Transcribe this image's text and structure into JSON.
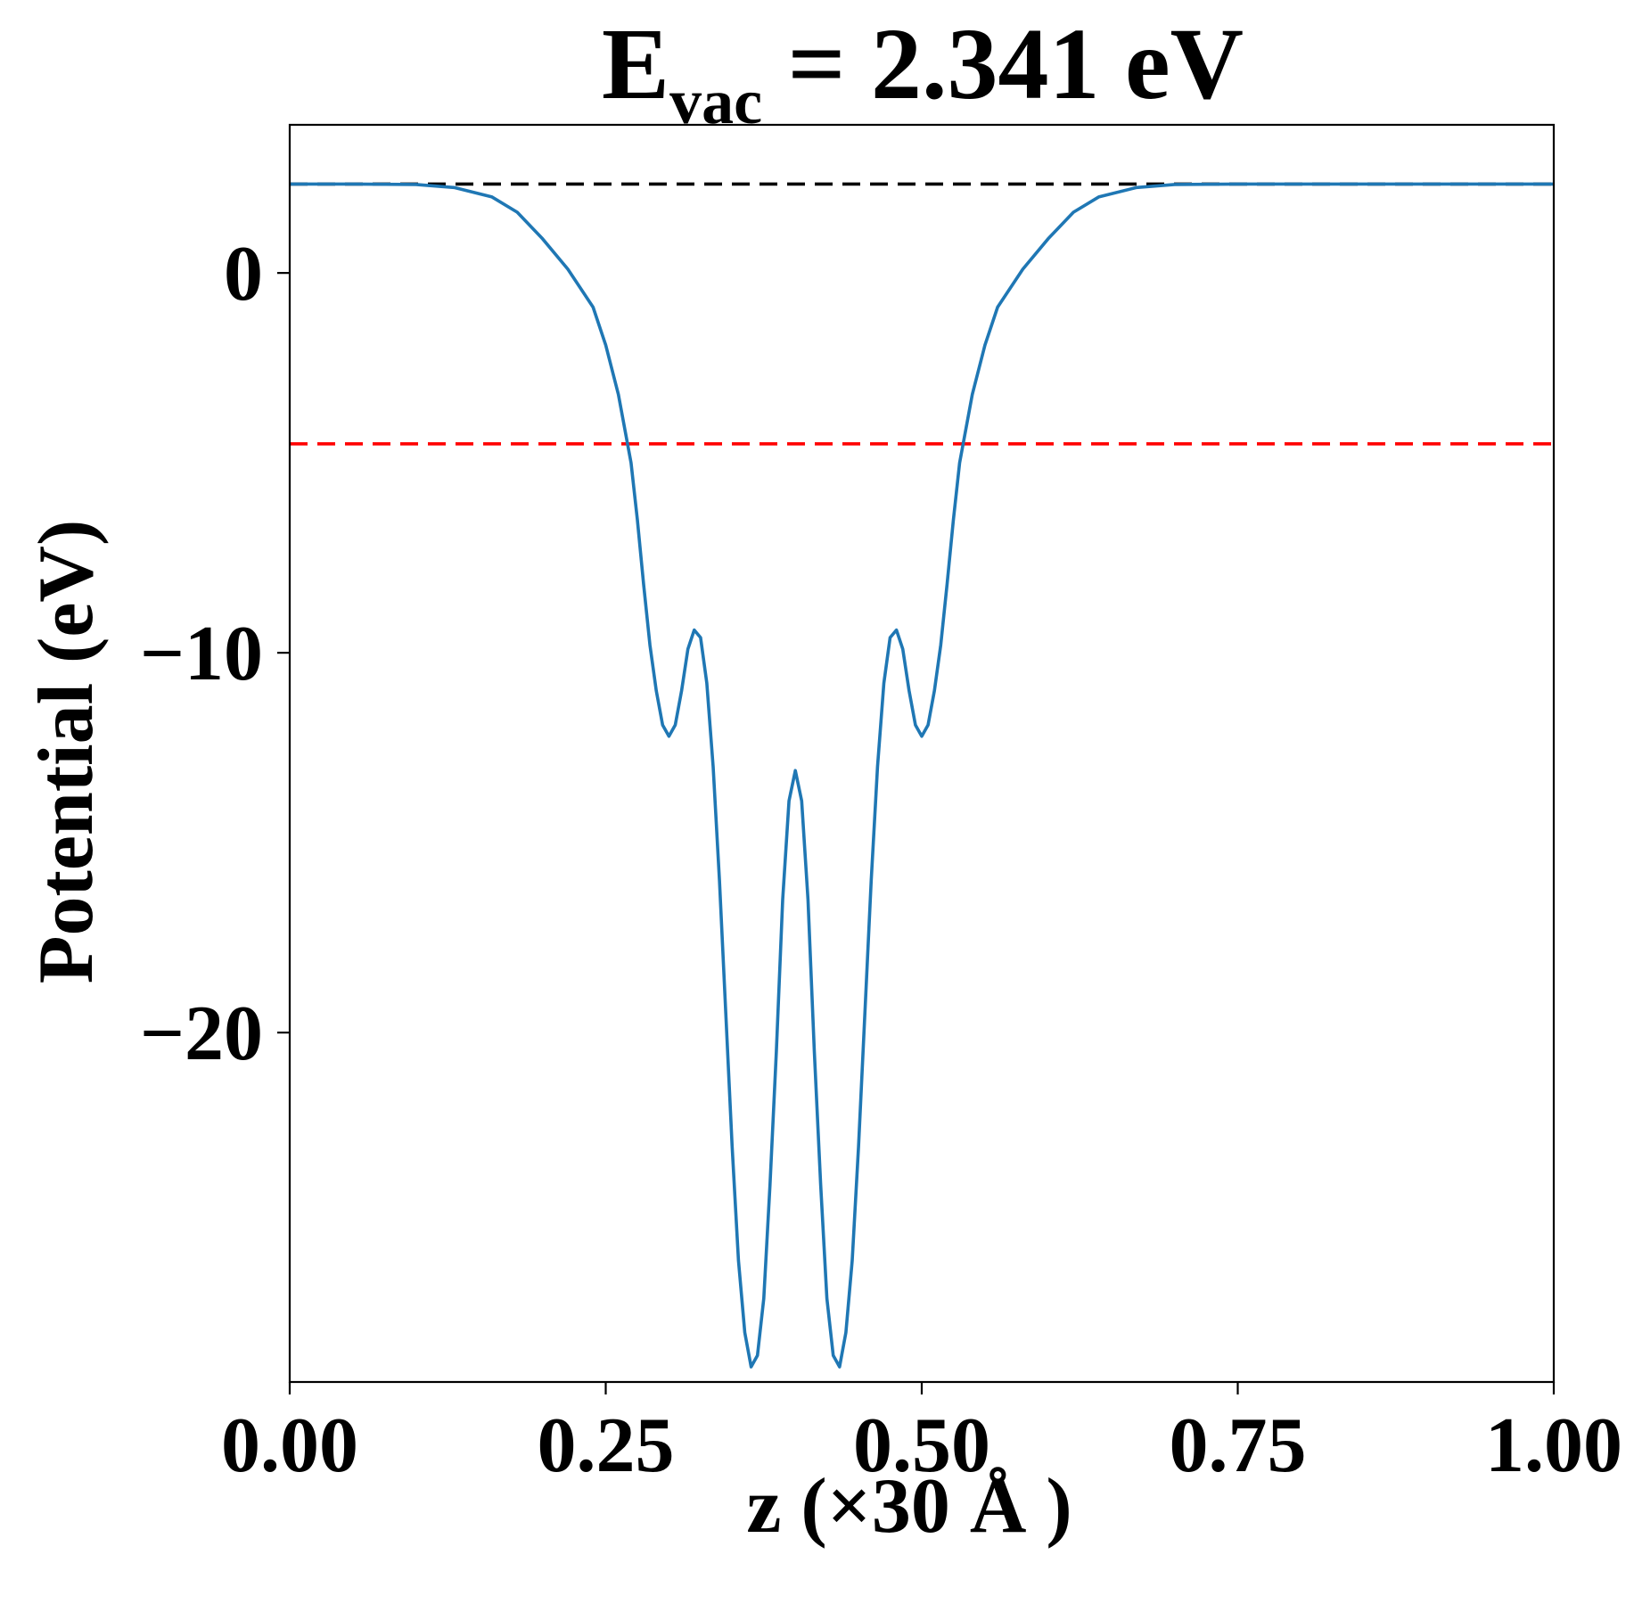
{
  "chart_data": {
    "type": "line",
    "title_main": "E",
    "title_sub": "vac",
    "title_rest": " = 2.341 eV",
    "xlabel": "z (×30 Å )",
    "ylabel": "Potential (eV)",
    "xlim": [
      0,
      1
    ],
    "ylim": [
      -29.2,
      3.9
    ],
    "grid": false,
    "legend": "none",
    "x_ticks": [
      {
        "value": 0.0,
        "label": "0.00"
      },
      {
        "value": 0.25,
        "label": "0.25"
      },
      {
        "value": 0.5,
        "label": "0.50"
      },
      {
        "value": 0.75,
        "label": "0.75"
      },
      {
        "value": 1.0,
        "label": "1.00"
      }
    ],
    "y_ticks": [
      {
        "value": 0,
        "label": "0"
      },
      {
        "value": -10,
        "label": "−10"
      },
      {
        "value": -20,
        "label": "−20"
      }
    ],
    "reference_lines": [
      {
        "kind": "vacuum-level",
        "y": 2.341,
        "color": "#000000",
        "style": "dashed"
      },
      {
        "kind": "fermi-level",
        "y": -4.5,
        "color": "#ff0000",
        "style": "dashed"
      }
    ],
    "series": [
      {
        "color": "#1f77b4",
        "points": [
          [
            0.0,
            2.341
          ],
          [
            0.05,
            2.341
          ],
          [
            0.1,
            2.33
          ],
          [
            0.13,
            2.25
          ],
          [
            0.16,
            2.0
          ],
          [
            0.18,
            1.6
          ],
          [
            0.2,
            0.9
          ],
          [
            0.22,
            0.1
          ],
          [
            0.24,
            -0.9
          ],
          [
            0.25,
            -1.9
          ],
          [
            0.26,
            -3.2
          ],
          [
            0.27,
            -5.0
          ],
          [
            0.275,
            -6.5
          ],
          [
            0.28,
            -8.2
          ],
          [
            0.285,
            -9.8
          ],
          [
            0.29,
            -11.0
          ],
          [
            0.295,
            -11.9
          ],
          [
            0.3,
            -12.2
          ],
          [
            0.305,
            -11.9
          ],
          [
            0.31,
            -11.0
          ],
          [
            0.315,
            -9.9
          ],
          [
            0.32,
            -9.4
          ],
          [
            0.325,
            -9.6
          ],
          [
            0.33,
            -10.8
          ],
          [
            0.335,
            -13.0
          ],
          [
            0.34,
            -16.0
          ],
          [
            0.345,
            -19.5
          ],
          [
            0.35,
            -23.0
          ],
          [
            0.355,
            -26.0
          ],
          [
            0.36,
            -27.9
          ],
          [
            0.365,
            -28.8
          ],
          [
            0.37,
            -28.5
          ],
          [
            0.375,
            -27.0
          ],
          [
            0.38,
            -24.0
          ],
          [
            0.385,
            -20.5
          ],
          [
            0.39,
            -16.5
          ],
          [
            0.395,
            -13.9
          ],
          [
            0.4,
            -13.1
          ],
          [
            0.405,
            -13.9
          ],
          [
            0.41,
            -16.5
          ],
          [
            0.415,
            -20.5
          ],
          [
            0.42,
            -24.0
          ],
          [
            0.425,
            -27.0
          ],
          [
            0.43,
            -28.5
          ],
          [
            0.435,
            -28.8
          ],
          [
            0.44,
            -27.9
          ],
          [
            0.445,
            -26.0
          ],
          [
            0.45,
            -23.0
          ],
          [
            0.455,
            -19.5
          ],
          [
            0.46,
            -16.0
          ],
          [
            0.465,
            -13.0
          ],
          [
            0.47,
            -10.8
          ],
          [
            0.475,
            -9.6
          ],
          [
            0.48,
            -9.4
          ],
          [
            0.485,
            -9.9
          ],
          [
            0.49,
            -11.0
          ],
          [
            0.495,
            -11.9
          ],
          [
            0.5,
            -12.2
          ],
          [
            0.505,
            -11.9
          ],
          [
            0.51,
            -11.0
          ],
          [
            0.515,
            -9.8
          ],
          [
            0.52,
            -8.2
          ],
          [
            0.525,
            -6.5
          ],
          [
            0.53,
            -5.0
          ],
          [
            0.54,
            -3.2
          ],
          [
            0.55,
            -1.9
          ],
          [
            0.56,
            -0.9
          ],
          [
            0.58,
            0.1
          ],
          [
            0.6,
            0.9
          ],
          [
            0.62,
            1.6
          ],
          [
            0.64,
            2.0
          ],
          [
            0.67,
            2.25
          ],
          [
            0.7,
            2.33
          ],
          [
            0.75,
            2.341
          ],
          [
            1.0,
            2.341
          ]
        ]
      }
    ]
  }
}
